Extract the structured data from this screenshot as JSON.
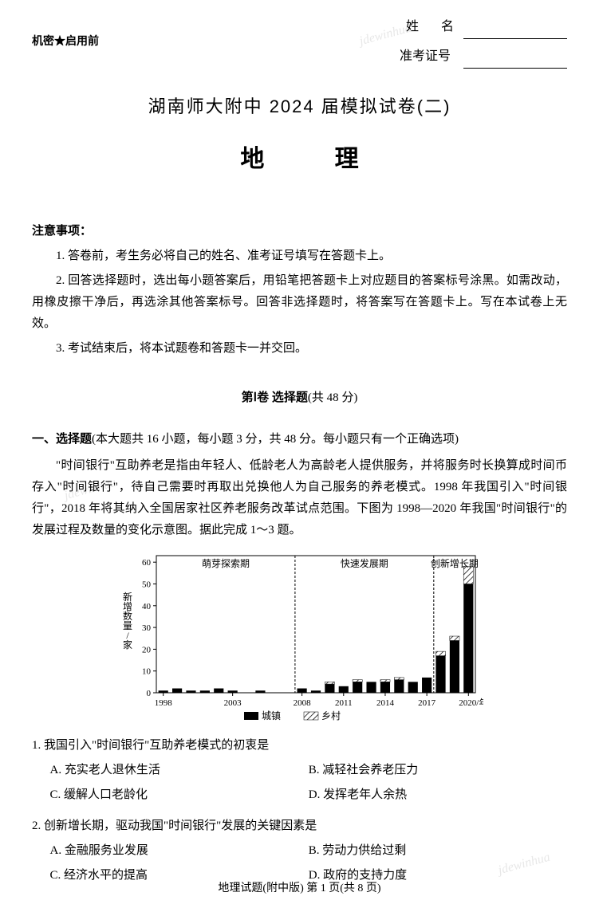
{
  "watermark": "jdewinhua",
  "header": {
    "confidential": "机密★启用前",
    "name_label": "姓    名",
    "exam_id_label": "准考证号"
  },
  "titles": {
    "main": "湖南师大附中 2024 届模拟试卷(二)",
    "subject": "地 理"
  },
  "notice": {
    "heading": "注意事项：",
    "items": [
      "1. 答卷前，考生务必将自己的姓名、准考证号填写在答题卡上。",
      "2. 回答选择题时，选出每小题答案后，用铅笔把答题卡上对应题目的答案标号涂黑。如需改动，用橡皮擦干净后，再选涂其他答案标号。回答非选择题时，将答案写在答题卡上。写在本试卷上无效。",
      "3. 考试结束后，将本试题卷和答题卡一并交回。"
    ]
  },
  "section1": {
    "title_bold": "第Ⅰ卷  选择题",
    "title_thin": "(共 48 分)"
  },
  "mcq": {
    "heading_bold": "一、选择题",
    "heading_thin": "(本大题共 16 小题，每小题 3 分，共 48 分。每小题只有一个正确选项)",
    "passage": "\"时间银行\"互助养老是指由年轻人、低龄老人为高龄老人提供服务，并将服务时长换算成时间币存入\"时间银行\"，待自己需要时再取出兑换他人为自己服务的养老模式。1998 年我国引入\"时间银行\"，2018 年将其纳入全国居家社区养老服务改革试点范围。下图为 1998—2020 年我国\"时间银行\"的发展过程及数量的变化示意图。据此完成 1～3 题。"
  },
  "chart": {
    "type": "bar",
    "y_label": "新增数量/家",
    "y_ticks": [
      0,
      10,
      20,
      30,
      40,
      50,
      60
    ],
    "ylim": [
      0,
      63
    ],
    "x_labels_shown": [
      "1998",
      "2003",
      "2008",
      "2011",
      "2014",
      "2017",
      "2020/年份"
    ],
    "periods": [
      {
        "label": "萌芽探索期",
        "start_year": 1998,
        "end_year": 2008
      },
      {
        "label": "快速发展期",
        "start_year": 2008,
        "end_year": 2018
      },
      {
        "label": "创新增长期",
        "start_year": 2018,
        "end_year": 2020
      }
    ],
    "legend": {
      "urban": "城镇",
      "rural": "乡村"
    },
    "data": [
      {
        "year": 1998,
        "urban": 1,
        "rural": 0
      },
      {
        "year": 1999,
        "urban": 2,
        "rural": 0
      },
      {
        "year": 2000,
        "urban": 1,
        "rural": 0
      },
      {
        "year": 2001,
        "urban": 1,
        "rural": 0
      },
      {
        "year": 2002,
        "urban": 2,
        "rural": 0
      },
      {
        "year": 2003,
        "urban": 1,
        "rural": 0
      },
      {
        "year": 2004,
        "urban": 0,
        "rural": 0
      },
      {
        "year": 2005,
        "urban": 1,
        "rural": 0
      },
      {
        "year": 2006,
        "urban": 0,
        "rural": 0
      },
      {
        "year": 2007,
        "urban": 0,
        "rural": 0
      },
      {
        "year": 2008,
        "urban": 2,
        "rural": 0
      },
      {
        "year": 2009,
        "urban": 1,
        "rural": 0
      },
      {
        "year": 2010,
        "urban": 4,
        "rural": 1
      },
      {
        "year": 2011,
        "urban": 3,
        "rural": 0
      },
      {
        "year": 2012,
        "urban": 5,
        "rural": 1
      },
      {
        "year": 2013,
        "urban": 5,
        "rural": 0
      },
      {
        "year": 2014,
        "urban": 5,
        "rural": 1
      },
      {
        "year": 2015,
        "urban": 6,
        "rural": 1
      },
      {
        "year": 2016,
        "urban": 5,
        "rural": 0
      },
      {
        "year": 2017,
        "urban": 7,
        "rural": 0
      },
      {
        "year": 2018,
        "urban": 17,
        "rural": 2
      },
      {
        "year": 2019,
        "urban": 24,
        "rural": 2
      },
      {
        "year": 2020,
        "urban": 50,
        "rural": 8
      }
    ],
    "colors": {
      "urban_fill": "#000000",
      "rural_pattern": "hatch",
      "axis": "#000000",
      "period_line": "#000000",
      "text": "#000000",
      "background": "#ffffff"
    },
    "bar_width_ratio": 0.7,
    "font_size_axis": 11,
    "font_size_period": 12
  },
  "questions": [
    {
      "num": "1.",
      "text": "我国引入\"时间银行\"互助养老模式的初衷是",
      "options": [
        "A. 充实老人退休生活",
        "B. 减轻社会养老压力",
        "C. 缓解人口老龄化",
        "D. 发挥老年人余热"
      ]
    },
    {
      "num": "2.",
      "text": "创新增长期，驱动我国\"时间银行\"发展的关键因素是",
      "options": [
        "A. 金融服务业发展",
        "B. 劳动力供给过剩",
        "C. 经济水平的提高",
        "D. 政府的支持力度"
      ]
    }
  ],
  "footer": "地理试题(附中版)  第 1 页(共 8 页)"
}
